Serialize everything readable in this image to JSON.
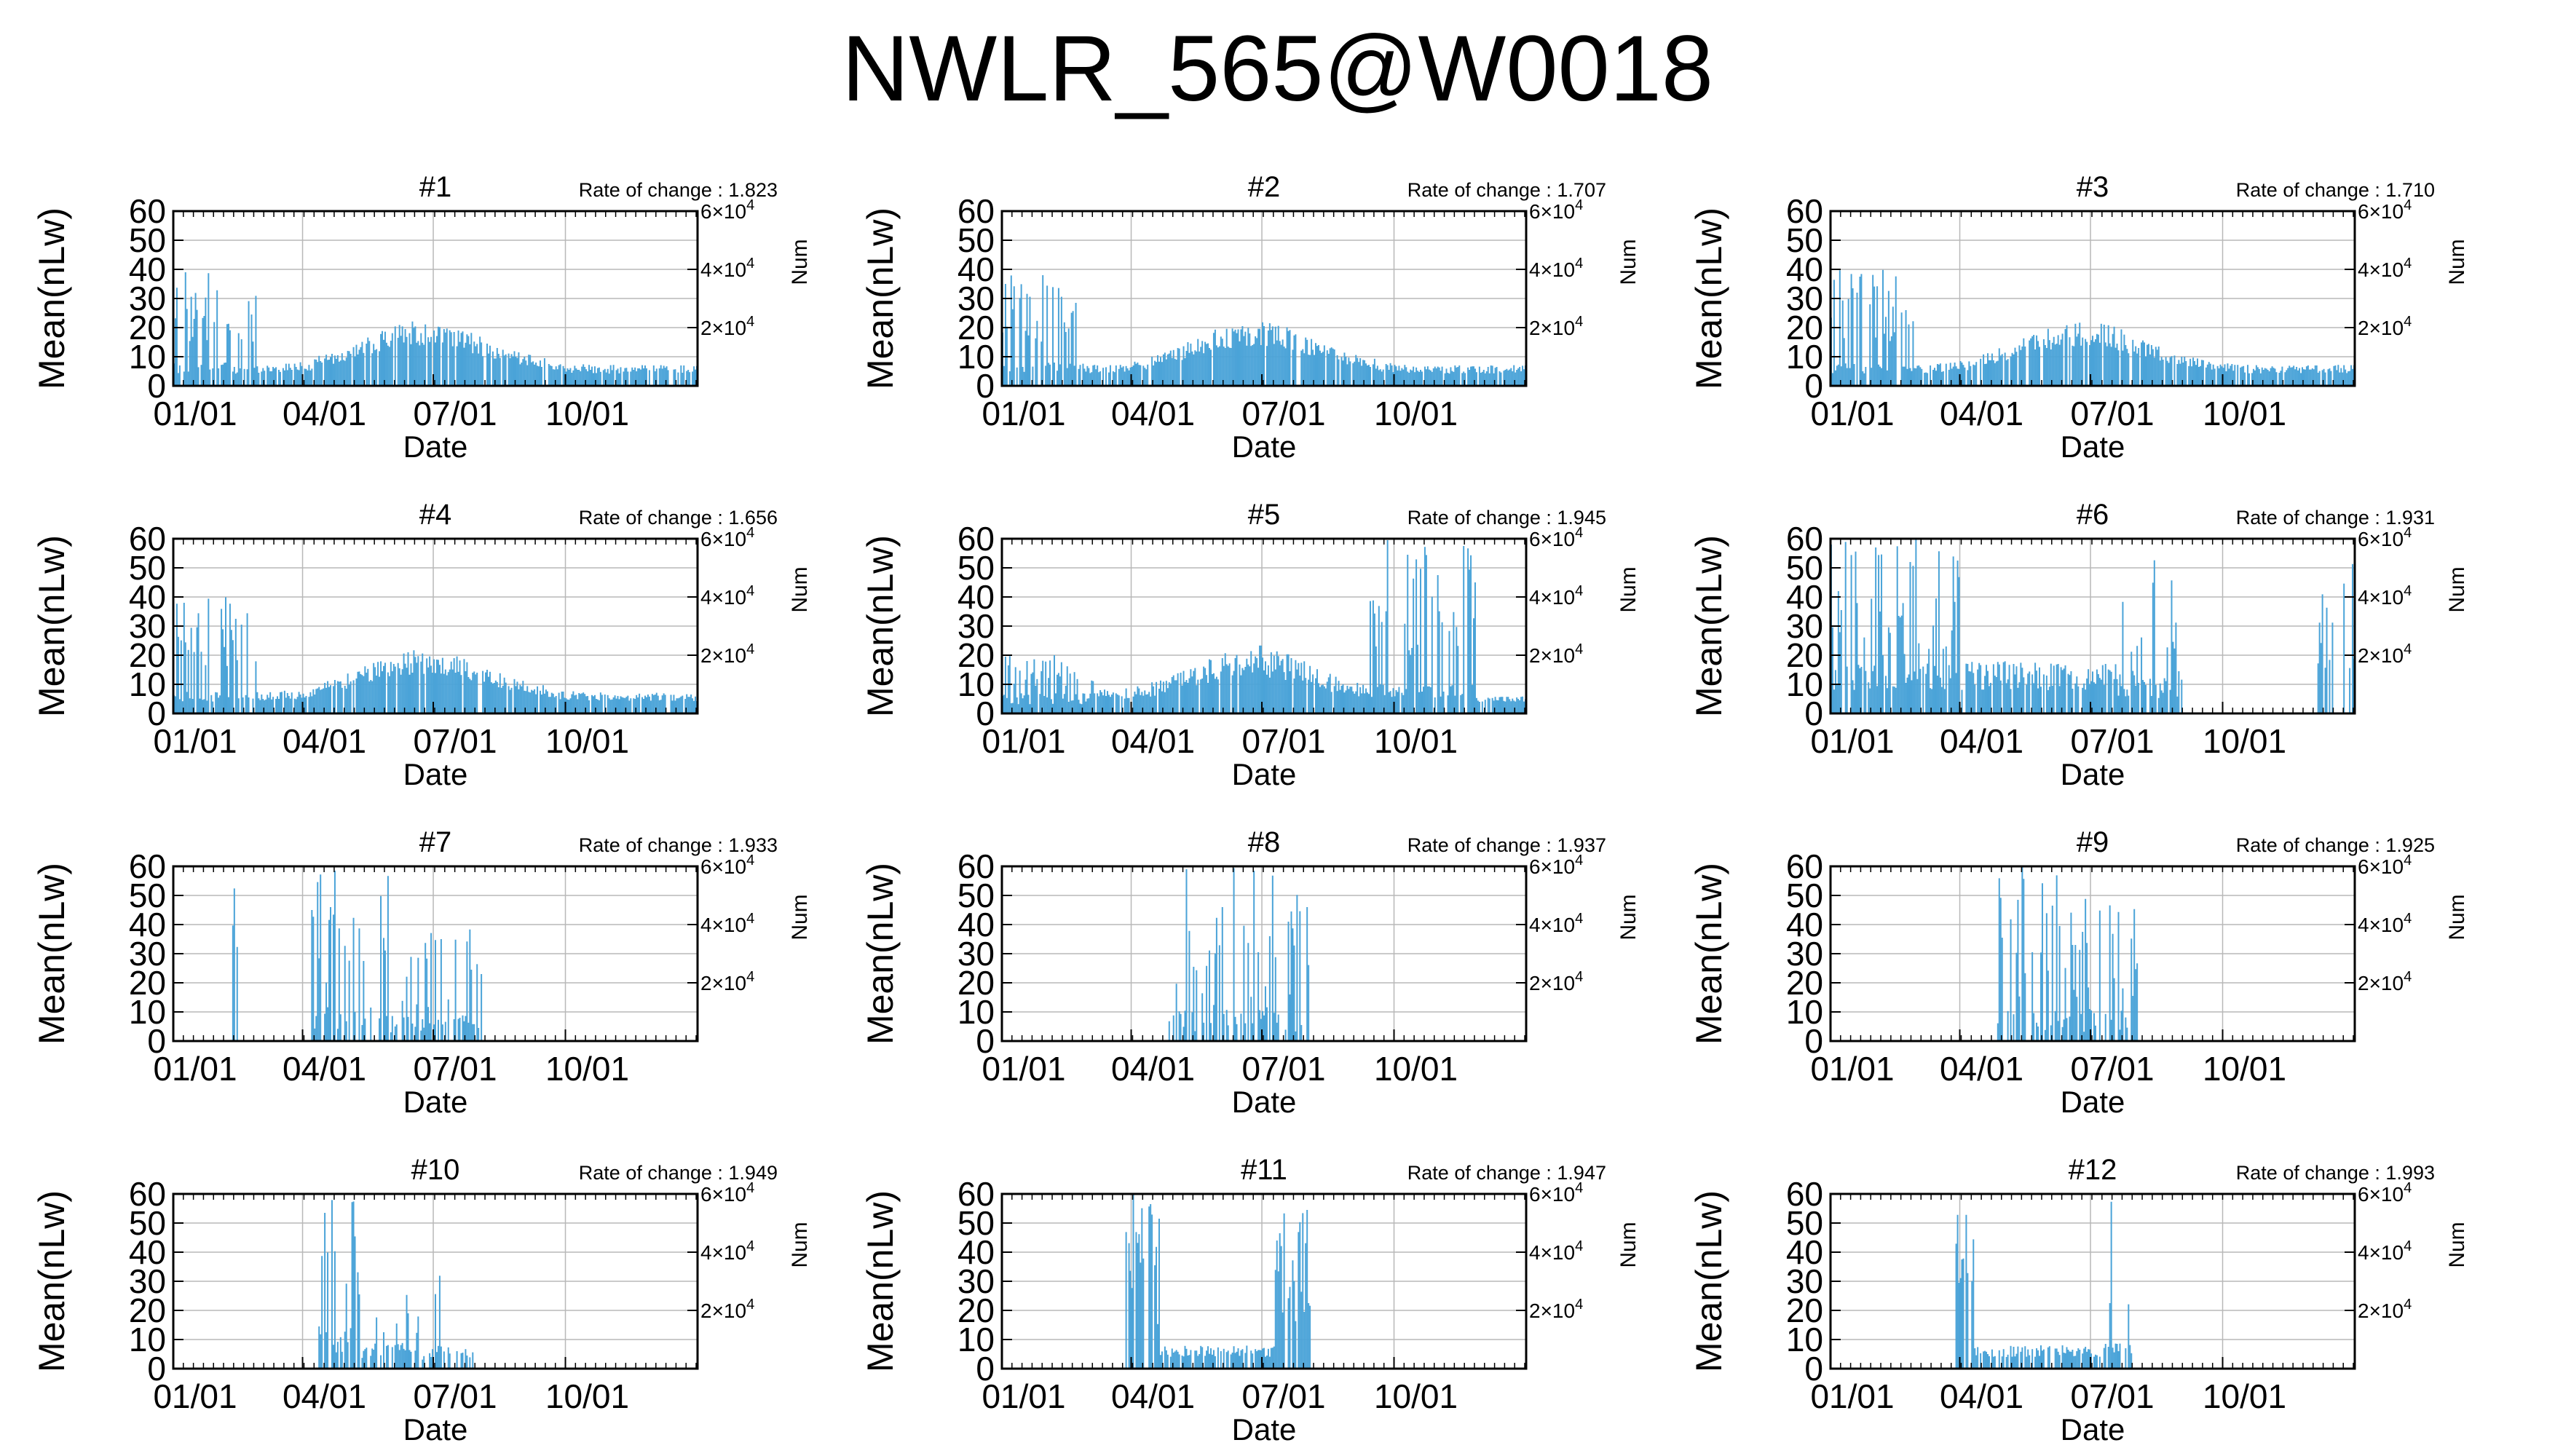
{
  "title": "NWLR_565@W0018",
  "colors": {
    "series": "#4aa3d8",
    "grid": "#b8b8b8",
    "axis": "#000000"
  },
  "shared_axes": {
    "xlabel": "Date",
    "ylabel": "Mean(nLw)",
    "y2label": "Num",
    "xticks": [
      "01/01",
      "04/01",
      "07/01",
      "10/01"
    ],
    "yticks": [
      "0",
      "10",
      "20",
      "30",
      "40",
      "50",
      "60"
    ],
    "y2ticks_base": "2×10",
    "y2ticks": [
      {
        "base": "2×10",
        "exp": "4",
        "value": 20000
      },
      {
        "base": "4×10",
        "exp": "4",
        "value": 40000
      },
      {
        "base": "6×10",
        "exp": "4",
        "value": 60000
      }
    ],
    "ylim": [
      0,
      60
    ],
    "y2lim": [
      0,
      60000
    ],
    "xlim": [
      "01/01",
      "12/31"
    ]
  },
  "chart_data": [
    {
      "type": "bar",
      "panel": "#1",
      "rate_label": "Rate of change : 1.823",
      "profile": "p1"
    },
    {
      "type": "bar",
      "panel": "#2",
      "rate_label": "Rate of change : 1.707",
      "profile": "p2"
    },
    {
      "type": "bar",
      "panel": "#3",
      "rate_label": "Rate of change : 1.710",
      "profile": "p3"
    },
    {
      "type": "bar",
      "panel": "#4",
      "rate_label": "Rate of change : 1.656",
      "profile": "p4"
    },
    {
      "type": "bar",
      "panel": "#5",
      "rate_label": "Rate of change : 1.945",
      "profile": "p5"
    },
    {
      "type": "bar",
      "panel": "#6",
      "rate_label": "Rate of change : 1.931",
      "profile": "p6"
    },
    {
      "type": "bar",
      "panel": "#7",
      "rate_label": "Rate of change : 1.933",
      "profile": "p7"
    },
    {
      "type": "bar",
      "panel": "#8",
      "rate_label": "Rate of change : 1.937",
      "profile": "p8"
    },
    {
      "type": "bar",
      "panel": "#9",
      "rate_label": "Rate of change : 1.925",
      "profile": "p9"
    },
    {
      "type": "bar",
      "panel": "#10",
      "rate_label": "Rate of change : 1.949",
      "profile": "p10"
    },
    {
      "type": "bar",
      "panel": "#11",
      "rate_label": "Rate of change : 1.947",
      "profile": "p11"
    },
    {
      "type": "bar",
      "panel": "#12",
      "rate_label": "Rate of change : 1.993",
      "profile": "p12"
    }
  ]
}
